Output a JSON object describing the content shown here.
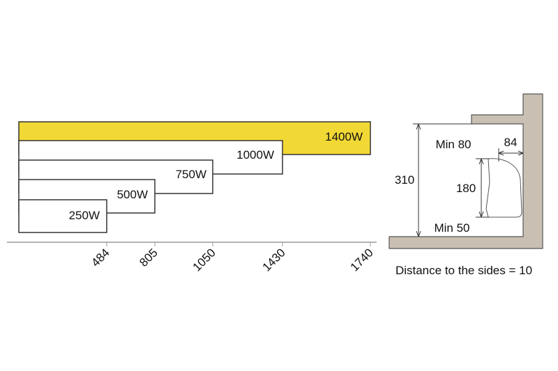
{
  "heaters": [
    {
      "label": "250W",
      "length": "484"
    },
    {
      "label": "500W",
      "length": "805"
    },
    {
      "label": "750W",
      "length": "1050"
    },
    {
      "label": "1000W",
      "length": "1430"
    },
    {
      "label": "1400W",
      "length": "1740"
    }
  ],
  "side_view": {
    "height": "310",
    "top_clearance": "Min 80",
    "depth": "84",
    "heater_height": "180",
    "bottom_clearance": "Min 50",
    "side_note": "Distance to the sides = 10"
  }
}
